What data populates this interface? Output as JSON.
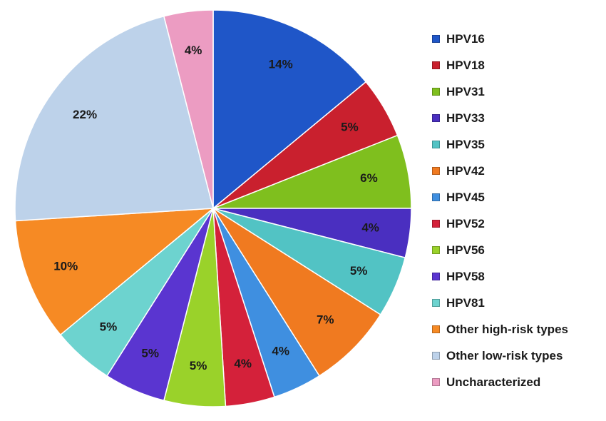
{
  "chart_data": {
    "type": "pie",
    "title": "",
    "slices": [
      {
        "name": "HPV16",
        "value": 14,
        "label": "14%",
        "color": "#1f56c8"
      },
      {
        "name": "HPV18",
        "value": 5,
        "label": "5%",
        "color": "#c9202e"
      },
      {
        "name": "HPV31",
        "value": 6,
        "label": "6%",
        "color": "#7fbf1e"
      },
      {
        "name": "HPV33",
        "value": 4,
        "label": "4%",
        "color": "#4a2fc0"
      },
      {
        "name": "HPV35",
        "value": 5,
        "label": "5%",
        "color": "#52c3c4"
      },
      {
        "name": "HPV42",
        "value": 7,
        "label": "7%",
        "color": "#f07a20"
      },
      {
        "name": "HPV45",
        "value": 4,
        "label": "4%",
        "color": "#3f8fe0"
      },
      {
        "name": "HPV52",
        "value": 4,
        "label": "4%",
        "color": "#d4213a"
      },
      {
        "name": "HPV56",
        "value": 5,
        "label": "5%",
        "color": "#9ad22a"
      },
      {
        "name": "HPV58",
        "value": 5,
        "label": "5%",
        "color": "#5a35d0"
      },
      {
        "name": "HPV81",
        "value": 5,
        "label": "5%",
        "color": "#6dd3cf"
      },
      {
        "name": "Other high-risk types",
        "value": 10,
        "label": "10%",
        "color": "#f68a24"
      },
      {
        "name": "Other low-risk types",
        "value": 22,
        "label": "22%",
        "color": "#bdd2ea"
      },
      {
        "name": "Uncharacterized",
        "value": 4,
        "label": "4%",
        "color": "#ec9cc2"
      }
    ],
    "legend": {
      "position": "right",
      "items": [
        {
          "label": "HPV16",
          "color": "#1f56c8"
        },
        {
          "label": "HPV18",
          "color": "#c9202e"
        },
        {
          "label": "HPV31",
          "color": "#7fbf1e"
        },
        {
          "label": "HPV33",
          "color": "#4a2fc0"
        },
        {
          "label": "HPV35",
          "color": "#52c3c4"
        },
        {
          "label": "HPV42",
          "color": "#f07a20"
        },
        {
          "label": "HPV45",
          "color": "#3f8fe0"
        },
        {
          "label": "HPV52",
          "color": "#d4213a"
        },
        {
          "label": "HPV56",
          "color": "#9ad22a"
        },
        {
          "label": "HPV58",
          "color": "#5a35d0"
        },
        {
          "label": "HPV81",
          "color": "#6dd3cf"
        },
        {
          "label": "Other high-risk types",
          "color": "#f68a24"
        },
        {
          "label": "Other low-risk types",
          "color": "#bdd2ea"
        },
        {
          "label": "Uncharacterized",
          "color": "#ec9cc2"
        }
      ]
    }
  }
}
